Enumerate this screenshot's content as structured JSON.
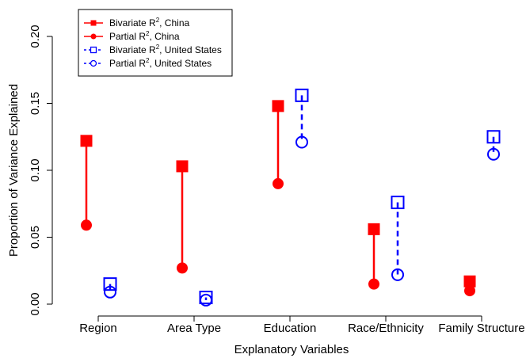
{
  "chart_data": {
    "type": "scatter",
    "xlabel": "Explanatory Variables",
    "ylabel": "Proportion of Variance Explained",
    "ylim": [
      0,
      0.2
    ],
    "yticks": [
      0.0,
      0.05,
      0.1,
      0.15,
      0.2
    ],
    "ytick_labels": [
      "0.00",
      "0.05",
      "0.10",
      "0.15",
      "0.20"
    ],
    "categories": [
      "Region",
      "Area Type",
      "Education",
      "Race/Ethnicity",
      "Family Structure"
    ],
    "series": [
      {
        "name": "Bivariate R², China",
        "values": [
          0.122,
          0.103,
          0.148,
          0.056,
          0.017
        ],
        "color": "#ff0000",
        "marker": "filled-square",
        "line": "solid"
      },
      {
        "name": "Partial R², China",
        "values": [
          0.059,
          0.027,
          0.09,
          0.015,
          0.01
        ],
        "color": "#ff0000",
        "marker": "filled-circle",
        "line": "solid"
      },
      {
        "name": "Bivariate R², United States",
        "values": [
          0.015,
          0.005,
          0.156,
          0.076,
          0.125
        ],
        "color": "#0000ff",
        "marker": "open-square",
        "line": "dashed"
      },
      {
        "name": "Partial R², United States",
        "values": [
          0.009,
          0.003,
          0.121,
          0.022,
          0.112
        ],
        "color": "#0000ff",
        "marker": "open-circle",
        "line": "dashed"
      }
    ],
    "legend_position": "top-left",
    "grid": false
  },
  "legend": {
    "entries": [
      {
        "prefix": "Bivariate R",
        "sup": "2",
        "suffix": ", China"
      },
      {
        "prefix": "Partial R",
        "sup": "2",
        "suffix": ", China"
      },
      {
        "prefix": "Bivariate R",
        "sup": "2",
        "suffix": ", United States"
      },
      {
        "prefix": "Partial R",
        "sup": "2",
        "suffix": ", United States"
      }
    ]
  }
}
